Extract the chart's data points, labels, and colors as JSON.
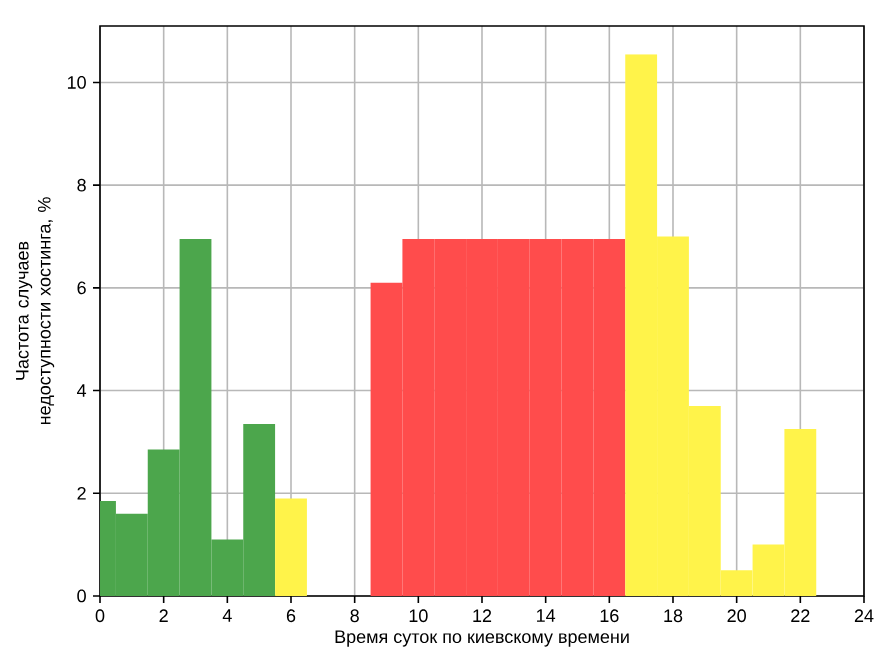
{
  "chart_data": {
    "type": "bar",
    "xlabel": "Время суток по киевскому времени",
    "ylabel": "Частота случаев недоступности хостинга, %",
    "x": [
      0,
      1,
      2,
      3,
      4,
      5,
      6,
      9,
      10,
      11,
      12,
      13,
      14,
      15,
      16,
      17,
      18,
      19,
      20,
      21,
      22
    ],
    "values": [
      1.85,
      1.6,
      2.85,
      6.95,
      1.1,
      3.35,
      1.9,
      6.1,
      6.95,
      6.95,
      6.95,
      6.95,
      6.95,
      6.95,
      6.95,
      10.55,
      7.0,
      3.7,
      0.5,
      1.0,
      3.25
    ],
    "colors": [
      "#4ca64c",
      "#4ca64c",
      "#4ca64c",
      "#4ca64c",
      "#4ca64c",
      "#4ca64c",
      "#fff34a",
      "#ff4c4c",
      "#ff4c4c",
      "#ff4c4c",
      "#ff4c4c",
      "#ff4c4c",
      "#ff4c4c",
      "#ff4c4c",
      "#ff4c4c",
      "#fff34a",
      "#fff34a",
      "#fff34a",
      "#fff34a",
      "#fff34a",
      "#fff34a"
    ],
    "xlim": [
      0,
      24
    ],
    "xticks": [
      0,
      2,
      4,
      6,
      8,
      10,
      12,
      14,
      16,
      18,
      20,
      22,
      24
    ],
    "ylim": [
      0,
      11.1
    ],
    "yticks": [
      0,
      2,
      4,
      6,
      8,
      10
    ],
    "grid": true
  }
}
